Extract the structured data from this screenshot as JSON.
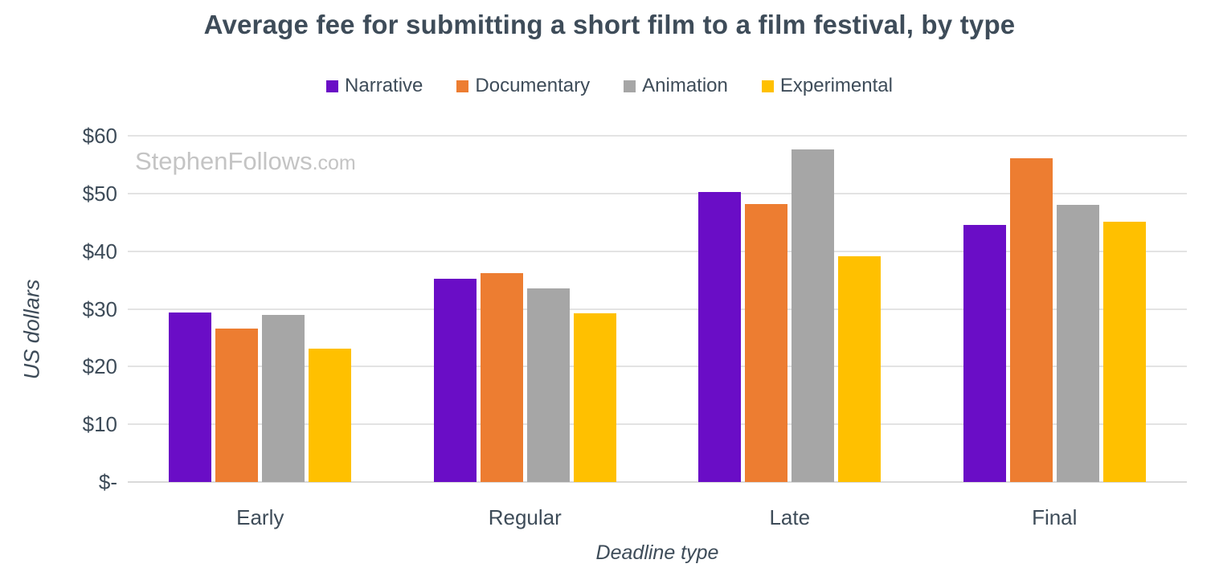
{
  "page": {
    "background": "#FFFFFF",
    "text_color": "#3E4C59",
    "gridline_color": "#E3E3E3",
    "baseline_color": "#D9D9D9",
    "watermark_color": "#C4C4C4"
  },
  "watermark": {
    "main": "StephenFollows",
    "suffix": ".com"
  },
  "chart_data": {
    "type": "bar",
    "title": "Average fee for submitting a short film to a film festival, by type",
    "xlabel": "Deadline type",
    "ylabel": "US dollars",
    "categories": [
      "Early",
      "Regular",
      "Late",
      "Final"
    ],
    "series": [
      {
        "name": "Narrative",
        "color": "#6A0DC6",
        "values": [
          29.4,
          35.2,
          50.3,
          44.6
        ]
      },
      {
        "name": "Documentary",
        "color": "#ED7D31",
        "values": [
          26.6,
          36.2,
          48.2,
          56.1
        ]
      },
      {
        "name": "Animation",
        "color": "#A6A6A6",
        "values": [
          28.9,
          33.5,
          57.6,
          48.0
        ]
      },
      {
        "name": "Experimental",
        "color": "#FFC000",
        "values": [
          23.1,
          29.2,
          39.1,
          45.1
        ]
      }
    ],
    "ylim": [
      0,
      60
    ],
    "yticks": [
      {
        "value": 0,
        "label": "$-"
      },
      {
        "value": 10,
        "label": "$10"
      },
      {
        "value": 20,
        "label": "$20"
      },
      {
        "value": 30,
        "label": "$30"
      },
      {
        "value": 40,
        "label": "$40"
      },
      {
        "value": 50,
        "label": "$50"
      },
      {
        "value": 60,
        "label": "$60"
      }
    ],
    "grid": true,
    "legend_position": "top"
  }
}
